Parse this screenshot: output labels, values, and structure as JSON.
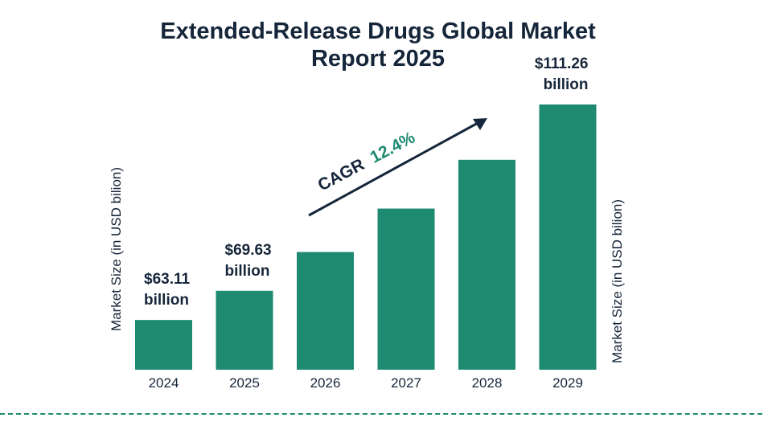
{
  "chart_data": {
    "type": "bar",
    "title": "Extended-Release Drugs Global Market Report 2025",
    "title_lines": [
      "Extended-Release Drugs Global Market",
      "Report 2025"
    ],
    "categories": [
      "2024",
      "2025",
      "2026",
      "2027",
      "2028",
      "2029"
    ],
    "values": [
      63.11,
      69.63,
      78.3,
      88.0,
      98.9,
      111.26
    ],
    "data_labels": [
      {
        "index": 0,
        "amount": "$63.11",
        "unit": "billion"
      },
      {
        "index": 1,
        "amount": "$69.63",
        "unit": "billion"
      },
      {
        "index": 5,
        "amount": "$111.26",
        "unit": "billion"
      }
    ],
    "ylabel": "Market Size (in USD bilion)",
    "ylabel_right": "Market Size (in USD bilion)",
    "ylim": [
      52,
      112
    ],
    "grid": false,
    "annotation": {
      "label": "CAGR",
      "value": "12.4%"
    },
    "colors": {
      "bar": "#1e8a72",
      "text": "#16263a",
      "accent": "#1e8a72"
    }
  }
}
